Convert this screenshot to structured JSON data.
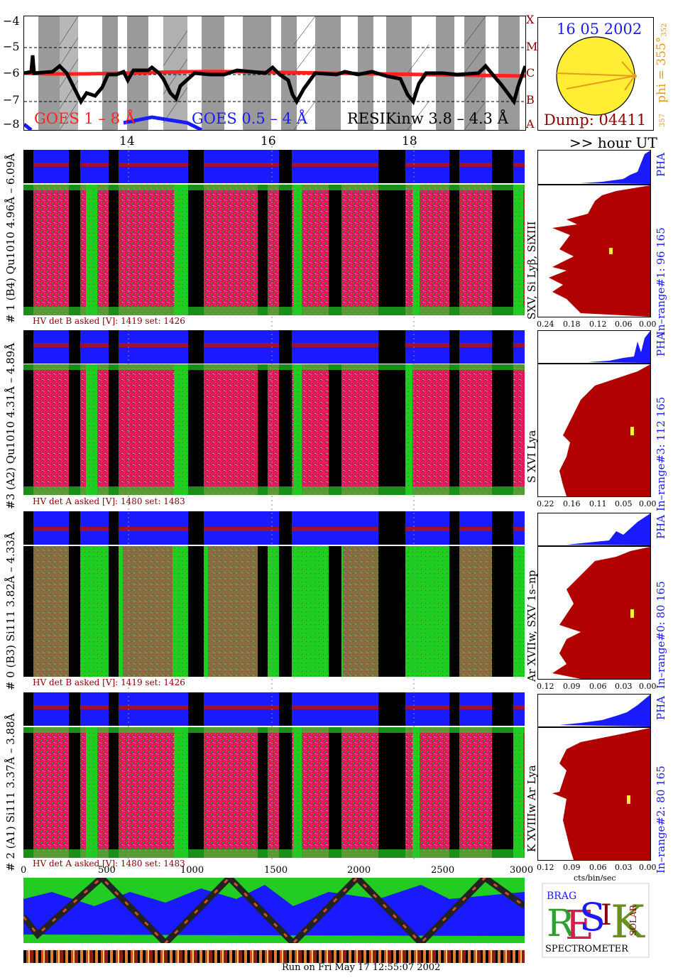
{
  "header": {
    "date": "16 05 2002",
    "dump": "Dump: 04411",
    "phi_label": "phi = 355°",
    "phi_sub": "352",
    "phi_small": "357",
    "goes_long": "GOES 1 – 8 Å",
    "goes_short": "GOES 0.5 – 4 Å",
    "resik": "RESIKinw 3.8 – 4.3 Å",
    "y_ticks": [
      "−4",
      "−5",
      "−6",
      "−7",
      "−8"
    ],
    "flare_classes": [
      "X",
      "M",
      "C",
      "B",
      "A"
    ],
    "hour_ticks": [
      "14",
      "16",
      "18"
    ],
    "hour_unit": ">> hour UT"
  },
  "channels": [
    {
      "id": "ch1",
      "label": "# 1 (B4) Qu1010 4.96Å – 6.09Å",
      "lines": "SXV, Si Lyβ, SiXIII",
      "hv": "HV det B asked [V]:  1419  set:  1426",
      "inrange": "In–range#1:   96 165",
      "ticks": [
        "0.24",
        "0.18",
        "0.12",
        "0.06",
        "0.00"
      ]
    },
    {
      "id": "ch3",
      "label": "#3 (A2) Qu1010  4.31Å – 4.89Å",
      "lines": "S XVI Lya",
      "hv": "HV det A asked [V]:  1480  set:  1483",
      "inrange": "In–range#3:   112 165",
      "ticks": [
        "0.22",
        "0.16",
        "0.11",
        "0.05",
        "0.00"
      ]
    },
    {
      "id": "ch0",
      "label": "# 0 (B3) Si111  3.82Å – 4.33Å",
      "lines": "Ar XVIIw,  SXV 1s–np",
      "hv": "HV det B asked [V]:  1419  set:  1426",
      "inrange": "In–range#0:   80 165",
      "ticks": [
        "0.12",
        "0.09",
        "0.06",
        "0.03",
        "0.00"
      ]
    },
    {
      "id": "ch2",
      "label": "# 2 (A1) Si111  3.37Å – 3.88Å",
      "lines": "K XVIIIw   Ar Lya",
      "hv": "HV det A asked [V]:  1480  set:  1483",
      "inrange": "In–range#2:   80 165",
      "ticks": [
        "0.12",
        "0.09",
        "0.06",
        "0.03",
        "0.00"
      ]
    }
  ],
  "pha_label": "PHA",
  "x_ticks": [
    "0",
    "500",
    "1000",
    "1500",
    "2000",
    "2500",
    "3000"
  ],
  "units": "cts/bin/sec",
  "footer": "Run on Fri May 17 12:55:07 2002",
  "logo": {
    "letters": "RESIK",
    "top": "BRAG",
    "side": "SOLAR",
    "bottom": "SPECTROMETER"
  },
  "colors": {
    "red": "#ff2020",
    "blue": "#1a1aff",
    "darkred": "#b00000",
    "green": "#22dd22",
    "magenta": "#e0207a",
    "yellow": "#ffff44",
    "orange": "#e69a1e"
  }
}
